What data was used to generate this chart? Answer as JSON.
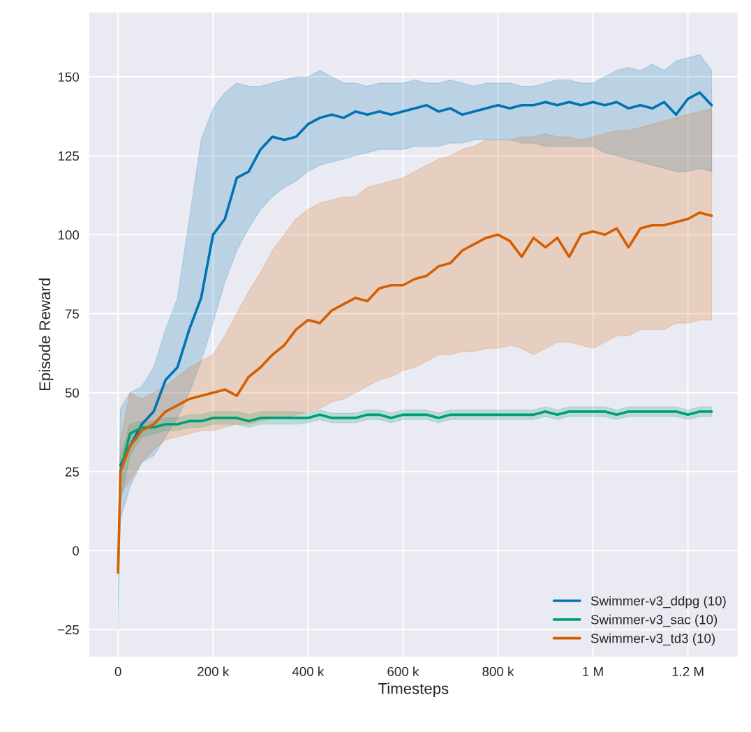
{
  "chart_data": {
    "type": "line",
    "xlabel": "Timesteps",
    "ylabel": "Episode Reward",
    "x": [
      0,
      5000,
      25000,
      50000,
      75000,
      100000,
      125000,
      150000,
      175000,
      200000,
      225000,
      250000,
      275000,
      300000,
      325000,
      350000,
      375000,
      400000,
      425000,
      450000,
      475000,
      500000,
      525000,
      550000,
      575000,
      600000,
      625000,
      650000,
      675000,
      700000,
      725000,
      750000,
      775000,
      800000,
      825000,
      850000,
      875000,
      900000,
      925000,
      950000,
      975000,
      1000000,
      1025000,
      1050000,
      1075000,
      1100000,
      1125000,
      1150000,
      1175000,
      1200000,
      1225000,
      1250000
    ],
    "xlim": [
      -62000,
      1306000
    ],
    "xticks": [
      0,
      {
        "value": 200000,
        "label": "200 k"
      },
      {
        "value": 400000,
        "label": "400 k"
      },
      {
        "value": 600000,
        "label": "600 k"
      },
      {
        "value": 800000,
        "label": "800 k"
      },
      {
        "value": 1000000,
        "label": "1 M"
      },
      {
        "value": 1200000,
        "label": "1.2 M"
      }
    ],
    "ylim": [
      -33.8,
      170.6
    ],
    "yticks": [
      {
        "value": -25,
        "label": "−25"
      },
      0,
      25,
      50,
      75,
      100,
      125,
      150
    ],
    "grid": true,
    "legend": "bottom right",
    "line_style": "solid",
    "marker": "none",
    "series": [
      {
        "name": "Swimmer-v3_ddpg (10)",
        "color": "#0173b2",
        "values": [
          null,
          27,
          33,
          40,
          44,
          54,
          58,
          70,
          80,
          100,
          105,
          118,
          120,
          127,
          131,
          130,
          131,
          135,
          137,
          138,
          137,
          139,
          138,
          139,
          138,
          139,
          140,
          141,
          139,
          140,
          138,
          139,
          140,
          141,
          140,
          141,
          141,
          142,
          141,
          142,
          141,
          142,
          141,
          142,
          140,
          141,
          140,
          142,
          138,
          143,
          145,
          141
        ],
        "lower": [
          -7,
          10,
          20,
          28,
          30,
          36,
          42,
          50,
          60,
          72,
          85,
          95,
          102,
          108,
          112,
          115,
          117,
          120,
          122,
          123,
          124,
          125,
          126,
          127,
          127,
          127,
          128,
          128,
          128,
          129,
          129,
          130,
          130,
          130,
          130,
          129,
          129,
          128,
          128,
          128,
          128,
          128,
          126,
          125,
          124,
          123,
          122,
          121,
          120,
          120,
          121,
          120
        ],
        "upper": [
          -7,
          45,
          50,
          52,
          58,
          70,
          80,
          105,
          130,
          140,
          145,
          148,
          147,
          147,
          148,
          149,
          150,
          150,
          152,
          150,
          148,
          148,
          147,
          148,
          148,
          148,
          149,
          148,
          148,
          149,
          148,
          147,
          148,
          148,
          148,
          147,
          147,
          148,
          149,
          149,
          148,
          148,
          150,
          152,
          153,
          152,
          154,
          152,
          155,
          156,
          157,
          152
        ]
      },
      {
        "name": "Swimmer-v3_sac (10)",
        "color": "#029e73",
        "values": [
          null,
          25,
          37,
          39,
          39,
          40,
          40,
          41,
          41,
          42,
          42,
          42,
          41,
          42,
          42,
          42,
          42,
          42,
          43,
          42,
          42,
          42,
          43,
          43,
          42,
          43,
          43,
          43,
          42,
          43,
          43,
          43,
          43,
          43,
          43,
          43,
          43,
          44,
          43,
          44,
          44,
          44,
          44,
          43,
          44,
          44,
          44,
          44,
          44,
          43,
          44,
          44
        ],
        "lower": [
          -25,
          15,
          30,
          36,
          37,
          38,
          38,
          39,
          39,
          40,
          40,
          40,
          39,
          40,
          40,
          40,
          40,
          40.5,
          41.5,
          40.5,
          40.5,
          40.5,
          41.5,
          41.5,
          40.5,
          41.5,
          41.5,
          41.5,
          40.5,
          41.5,
          41.5,
          41.5,
          41.5,
          41.5,
          41.5,
          41.5,
          41.5,
          42.5,
          41.5,
          42.5,
          42.5,
          42.5,
          42.5,
          41.5,
          42.5,
          42.5,
          42.5,
          42.5,
          42.5,
          41.5,
          42.5,
          42.5
        ],
        "upper": [
          -5,
          30,
          40,
          41,
          41,
          42,
          42,
          43,
          43,
          44,
          44,
          44,
          43,
          44,
          44,
          44,
          44,
          43.5,
          44.5,
          43.5,
          43.5,
          43.5,
          44.5,
          44.5,
          43.5,
          44.5,
          44.5,
          44.5,
          43.5,
          44.5,
          44.5,
          44.5,
          44.5,
          44.5,
          44.5,
          44.5,
          44.5,
          45.5,
          44.5,
          45.5,
          45.5,
          45.5,
          45.5,
          44.5,
          45.5,
          45.5,
          45.5,
          45.5,
          45.5,
          44.5,
          45.5,
          45.5
        ]
      },
      {
        "name": "Swimmer-v3_td3 (10)",
        "color": "#d55e00",
        "values": [
          -7,
          25,
          33,
          38,
          40,
          44,
          46,
          48,
          49,
          50,
          51,
          49,
          55,
          58,
          62,
          65,
          70,
          73,
          72,
          76,
          78,
          80,
          79,
          83,
          84,
          84,
          86,
          87,
          90,
          91,
          95,
          97,
          99,
          100,
          98,
          93,
          99,
          96,
          99,
          93,
          100,
          101,
          100,
          102,
          96,
          102,
          103,
          103,
          104,
          105,
          107,
          106
        ],
        "lower": [
          -7,
          18,
          22,
          28,
          32,
          35,
          36,
          37,
          38,
          38,
          39,
          40,
          40,
          41,
          42,
          42,
          43,
          44,
          45,
          47,
          48,
          50,
          52,
          54,
          55,
          57,
          58,
          60,
          62,
          62,
          63,
          63,
          64,
          64,
          65,
          64,
          62,
          64,
          66,
          66,
          65,
          64,
          66,
          68,
          68,
          70,
          70,
          70,
          72,
          72,
          73,
          73
        ],
        "upper": [
          -7,
          35,
          50,
          48,
          50,
          52,
          55,
          58,
          60,
          62,
          68,
          75,
          82,
          88,
          95,
          100,
          105,
          108,
          110,
          111,
          112,
          112,
          115,
          116,
          117,
          118,
          120,
          122,
          124,
          125,
          127,
          128,
          130,
          130,
          130,
          131,
          131,
          132,
          131,
          131,
          130,
          131,
          132,
          133,
          133,
          134,
          135,
          136,
          137,
          138,
          139,
          140
        ]
      }
    ]
  }
}
